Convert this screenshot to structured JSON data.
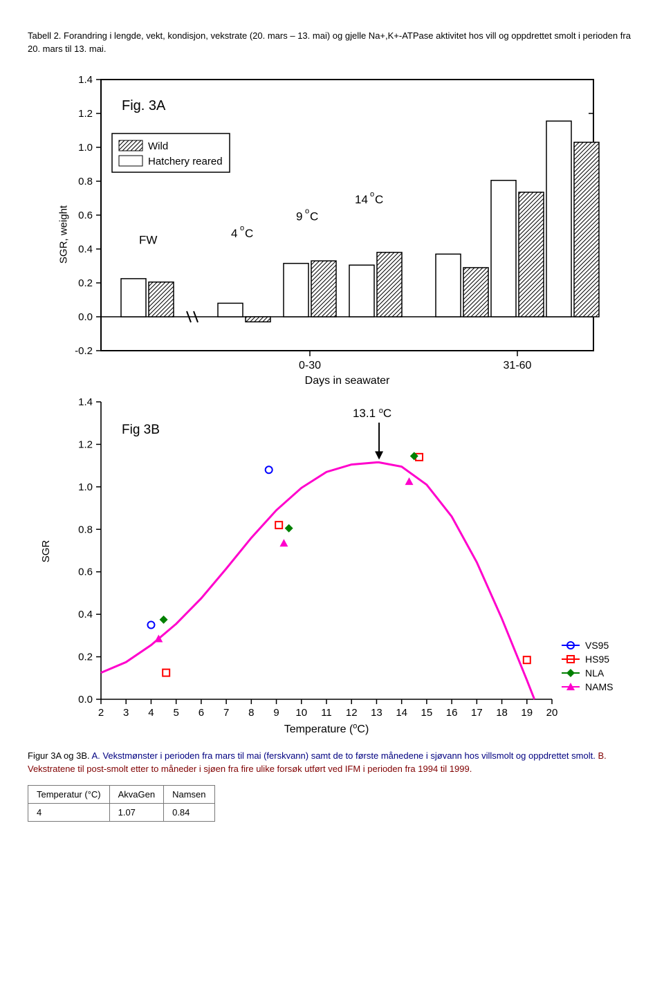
{
  "caption_top": "Tabell 2. Forandring i lengde, vekt, kondisjon, vekstrate (20. mars – 13. mai) og gjelle Na+,K+-ATPase aktivitet hos vill og oppdrettet smolt i perioden fra 20. mars til 13. mai.",
  "caption_bottom_plain": "Figur 3A og 3B. ",
  "caption_bottom_a_label": "A.",
  "caption_bottom_a_text": " Vekstmønster i perioden fra mars til mai (ferskvann) samt de to første månedene i sjøvann hos villsmolt og oppdrettet smolt. ",
  "caption_bottom_b_label": "B.",
  "caption_bottom_b_text": " Vekstratene til post-smolt etter to måneder i sjøen fra fire ulike forsøk utført ved IFM i perioden fra 1994 til 1999.",
  "fig3a": {
    "title": "Fig. 3A",
    "type": "bar",
    "legend": {
      "items": [
        "Wild",
        "Hatchery reared"
      ]
    },
    "ylabel": "SGR, weight",
    "xlabel": "Days in seawater",
    "ylim": [
      -0.2,
      1.4
    ],
    "yticks": [
      -0.2,
      0.0,
      0.2,
      0.4,
      0.6,
      0.8,
      1.0,
      1.2,
      1.4
    ],
    "group_labels": [
      "FW",
      "4 °C",
      "9 °C",
      "14 °C"
    ],
    "annotations": {
      "fw": "FW",
      "t4": "4 °C",
      "t9": "9 °C",
      "t14": "14 °C"
    },
    "period_labels": [
      "0-30",
      "31-60"
    ],
    "colors": {
      "border": "#000000",
      "hatchery_fill": "#ffffff",
      "wild_hatch": "#000000"
    },
    "bars": [
      {
        "period": "FW",
        "group": "FW",
        "hatchery": 0.225,
        "wild": 0.205
      },
      {
        "period": "0-30",
        "group": "4",
        "hatchery": 0.08,
        "wild": -0.03
      },
      {
        "period": "0-30",
        "group": "9",
        "hatchery": 0.315,
        "wild": 0.33
      },
      {
        "period": "0-30",
        "group": "14",
        "hatchery": 0.305,
        "wild": 0.38
      },
      {
        "period": "31-60",
        "group": "4b",
        "hatchery": 0.37,
        "wild": 0.29
      },
      {
        "period": "31-60",
        "group": "9b",
        "hatchery": 0.805,
        "wild": 0.735
      },
      {
        "period": "31-60",
        "group": "14b",
        "hatchery": 1.155,
        "wild": 1.03
      }
    ]
  },
  "fig3b": {
    "title": "Fig 3B",
    "type": "scatter+curve",
    "ylabel": "SGR",
    "xlabel": "Temperature (°C)",
    "xlabel_html": "Temperature ( °C)",
    "xlim": [
      2,
      20
    ],
    "xticks": [
      2,
      3,
      4,
      5,
      6,
      7,
      8,
      9,
      10,
      11,
      12,
      13,
      14,
      15,
      16,
      17,
      18,
      19,
      20
    ],
    "ylim": [
      0.0,
      1.4
    ],
    "yticks": [
      0.0,
      0.2,
      0.4,
      0.6,
      0.8,
      1.0,
      1.2,
      1.4
    ],
    "peak_label": "13.1 °C",
    "peak_x": 13.1,
    "colors": {
      "vs95": "#0000ff",
      "hs95": "#ff0000",
      "nla": "#008000",
      "nams": "#ff00cc",
      "curve": "#ff00cc",
      "axis": "#000000"
    },
    "legend": [
      {
        "key": "VS95",
        "marker": "circle-open",
        "color": "#0000ff"
      },
      {
        "key": "HS95",
        "marker": "square-open",
        "color": "#ff0000"
      },
      {
        "key": "NLA",
        "marker": "diamond-fill",
        "color": "#008000"
      },
      {
        "key": "NAMS",
        "marker": "triangle-fill",
        "color": "#ff00cc"
      }
    ],
    "points": {
      "VS95": [
        {
          "x": 4.0,
          "y": 0.35
        },
        {
          "x": 8.7,
          "y": 1.08
        }
      ],
      "HS95": [
        {
          "x": 4.6,
          "y": 0.125
        },
        {
          "x": 9.1,
          "y": 0.82
        },
        {
          "x": 14.7,
          "y": 1.14
        },
        {
          "x": 19.0,
          "y": 0.185
        }
      ],
      "NLA": [
        {
          "x": 4.5,
          "y": 0.375
        },
        {
          "x": 9.5,
          "y": 0.805
        },
        {
          "x": 14.5,
          "y": 1.145
        }
      ],
      "NAMS": [
        {
          "x": 4.3,
          "y": 0.285
        },
        {
          "x": 9.3,
          "y": 0.735
        },
        {
          "x": 14.3,
          "y": 1.025
        }
      ]
    },
    "curve_samples": [
      {
        "x": 2.0,
        "y": 0.125
      },
      {
        "x": 3.0,
        "y": 0.175
      },
      {
        "x": 4.0,
        "y": 0.255
      },
      {
        "x": 5.0,
        "y": 0.355
      },
      {
        "x": 6.0,
        "y": 0.475
      },
      {
        "x": 7.0,
        "y": 0.615
      },
      {
        "x": 8.0,
        "y": 0.76
      },
      {
        "x": 9.0,
        "y": 0.89
      },
      {
        "x": 10.0,
        "y": 0.995
      },
      {
        "x": 11.0,
        "y": 1.07
      },
      {
        "x": 12.0,
        "y": 1.105
      },
      {
        "x": 13.0,
        "y": 1.115
      },
      {
        "x": 13.1,
        "y": 1.115
      },
      {
        "x": 14.0,
        "y": 1.095
      },
      {
        "x": 15.0,
        "y": 1.01
      },
      {
        "x": 16.0,
        "y": 0.86
      },
      {
        "x": 17.0,
        "y": 0.645
      },
      {
        "x": 18.0,
        "y": 0.38
      },
      {
        "x": 19.0,
        "y": 0.09
      },
      {
        "x": 19.3,
        "y": 0.0
      }
    ]
  },
  "table": {
    "headers": [
      "Temperatur (°C)",
      "AkvaGen",
      "Namsen"
    ],
    "rows": [
      [
        "4",
        "1.07",
        "0.84"
      ]
    ]
  }
}
